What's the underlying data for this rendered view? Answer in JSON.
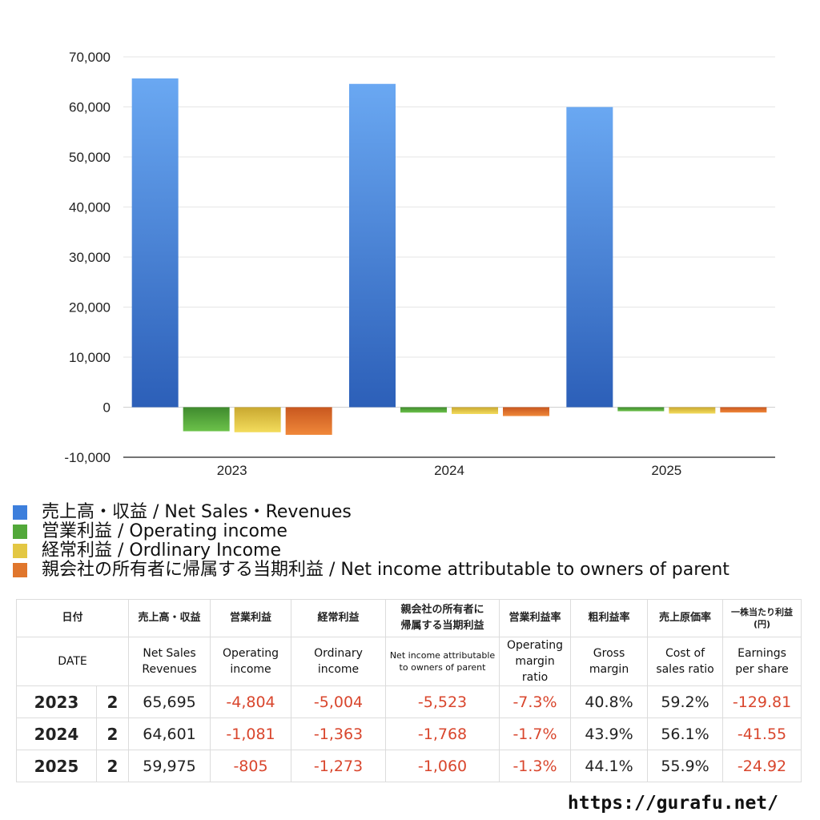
{
  "chart_data": {
    "type": "bar",
    "categories": [
      "2023",
      "2024",
      "2025"
    ],
    "ylim": [
      -10000,
      70000
    ],
    "yticks": [
      -10000,
      0,
      10000,
      20000,
      30000,
      40000,
      50000,
      60000,
      70000
    ],
    "ytick_labels": [
      "-10,000",
      "0",
      "10,000",
      "20,000",
      "30,000",
      "40,000",
      "50,000",
      "60,000",
      "70,000"
    ],
    "grid": true,
    "legend_position": "bottom",
    "series": [
      {
        "name": "売上高・収益 / Net Sales・Revenues",
        "values": [
          65695,
          64601,
          59975
        ],
        "color_top": "#6aa8f2",
        "color_bottom": "#2c5fb8"
      },
      {
        "name": "営業利益 / Operating income",
        "values": [
          -4804,
          -1081,
          -805
        ],
        "color_top": "#3f8a2e",
        "color_bottom": "#6cc24a"
      },
      {
        "name": "経常利益 / Ordlinary Income",
        "values": [
          -5004,
          -1363,
          -1273
        ],
        "color_top": "#c9a830",
        "color_bottom": "#f3dc5c"
      },
      {
        "name": "親会社の所有者に帰属する当期利益 / Net income attributable to owners of parent",
        "values": [
          -5523,
          -1768,
          -1060
        ],
        "color_top": "#c8571f",
        "color_bottom": "#f0883a"
      }
    ]
  },
  "legend": [
    {
      "label": "売上高・収益 / Net Sales・Revenues",
      "color": "#3d7fdc"
    },
    {
      "label": "営業利益 / Operating income",
      "color": "#52a83a"
    },
    {
      "label": "経常利益 / Ordlinary Income",
      "color": "#e3c743"
    },
    {
      "label": "親会社の所有者に帰属する当期利益 / Net income attributable to owners of parent",
      "color": "#e0762c"
    }
  ],
  "table": {
    "headers_jp": {
      "date": "日付",
      "sales": "売上高・収益",
      "op": "営業利益",
      "ord": "経常利益",
      "net_line1": "親会社の所有者に",
      "net_line2": "帰属する当期利益",
      "opm": "営業利益率",
      "gm": "粗利益率",
      "cost": "売上原価率",
      "eps_line1": "一株当たり利益",
      "eps_line2": "(円)"
    },
    "headers_en": {
      "date": "DATE",
      "sales_line1": "Net Sales",
      "sales_line2": "Revenues",
      "op_line1": "Operating",
      "op_line2": "income",
      "ord_line1": "Ordinary",
      "ord_line2": "income",
      "net_line1": "Net income attributable",
      "net_line2": "to owners of parent",
      "opm_line1": "Operating",
      "opm_line2": "margin",
      "opm_line3": "ratio",
      "gm_line1": "Gross",
      "gm_line2": "margin",
      "cost_line1": "Cost of",
      "cost_line2": "sales ratio",
      "eps_line1": "Earnings",
      "eps_line2": "per share"
    },
    "rows": [
      {
        "year": "2023",
        "q": "2",
        "sales": "65,695",
        "op": "-4,804",
        "ord": "-5,004",
        "net": "-5,523",
        "opm": "-7.3%",
        "gm": "40.8%",
        "cost": "59.2%",
        "eps": "-129.81"
      },
      {
        "year": "2024",
        "q": "2",
        "sales": "64,601",
        "op": "-1,081",
        "ord": "-1,363",
        "net": "-1,768",
        "opm": "-1.7%",
        "gm": "43.9%",
        "cost": "56.1%",
        "eps": "-41.55"
      },
      {
        "year": "2025",
        "q": "2",
        "sales": "59,975",
        "op": "-805",
        "ord": "-1,273",
        "net": "-1,060",
        "opm": "-1.3%",
        "gm": "44.1%",
        "cost": "55.9%",
        "eps": "-24.92"
      }
    ]
  },
  "footer": {
    "url": "https://gurafu.net/"
  }
}
